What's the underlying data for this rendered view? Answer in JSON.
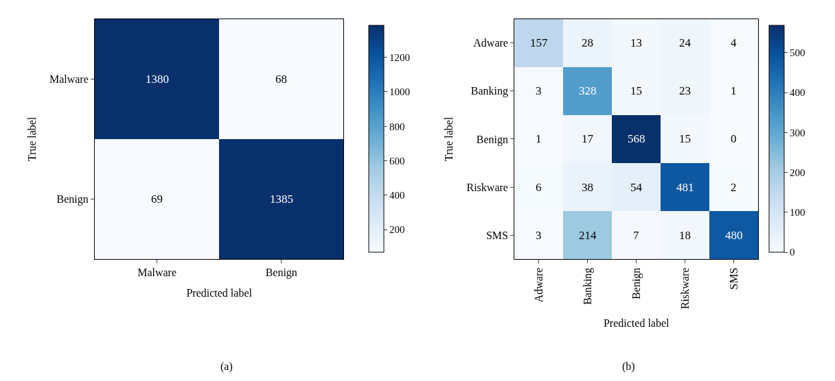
{
  "chart_data": [
    {
      "type": "heatmap",
      "xlabel": "Predicted label",
      "ylabel": "True label",
      "categories": [
        "Malware",
        "Benign"
      ],
      "y_categories": [
        "Malware",
        "Benign"
      ],
      "cells": [
        [
          1380,
          68
        ],
        [
          69,
          1385
        ]
      ],
      "data_labels": true,
      "clim": [
        68,
        1385
      ],
      "cticks": [
        200,
        400,
        600,
        800,
        1000,
        1200
      ],
      "annotations": [
        "(a)"
      ]
    },
    {
      "type": "heatmap",
      "xlabel": "Predicted label",
      "ylabel": "True label",
      "categories": [
        "Adware",
        "Banking",
        "Benign",
        "Riskware",
        "SMS"
      ],
      "y_categories": [
        "Adware",
        "Banking",
        "Benign",
        "Riskware",
        "SMS"
      ],
      "cells": [
        [
          157,
          28,
          13,
          24,
          4
        ],
        [
          3,
          328,
          15,
          23,
          1
        ],
        [
          1,
          17,
          568,
          15,
          0
        ],
        [
          6,
          38,
          54,
          481,
          2
        ],
        [
          3,
          214,
          7,
          18,
          480
        ]
      ],
      "data_labels": true,
      "clim": [
        0,
        568
      ],
      "cticks": [
        0,
        100,
        200,
        300,
        400,
        500
      ],
      "annotations": [
        "(b)"
      ]
    }
  ]
}
